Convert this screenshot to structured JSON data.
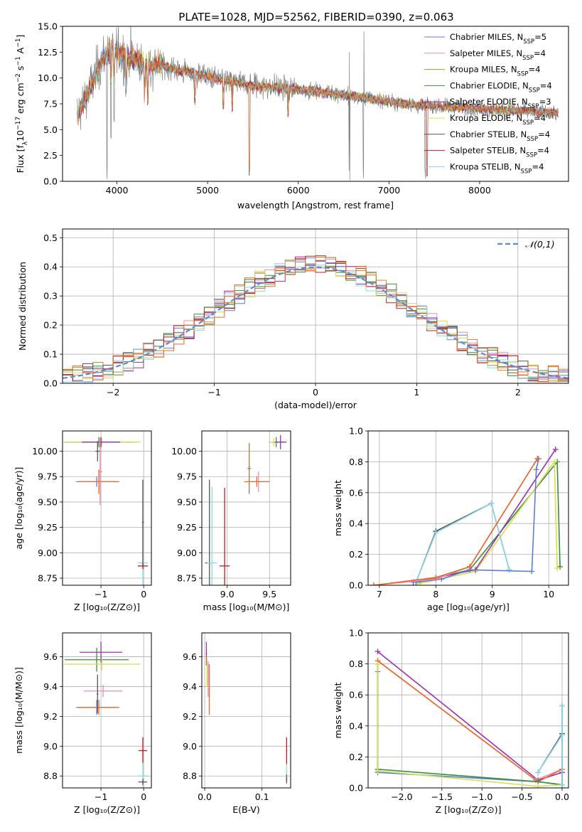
{
  "figure_title": "PLATE=1028, MJD=52562, FIBERID=0390, z=0.063",
  "colors": {
    "Chabrier MILES": "#5b7fd6",
    "Salpeter MILES": "#e88fa8",
    "Kroupa MILES": "#c08a2a",
    "Chabrier ELODIE": "#3c8c3c",
    "Salpeter ELODIE": "#9a2fb0",
    "Kroupa ELODIE": "#d4e04a",
    "Chabrier STELIB": "#555555",
    "Salpeter STELIB": "#b22222",
    "Kroupa STELIB": "#8fd8e8",
    "data": "#808080",
    "orange": "#e86a2a",
    "gaussian": "#5b8bd6"
  },
  "chart_data": [
    {
      "id": "spectrum",
      "type": "line",
      "title": "PLATE=1028, MJD=52562, FIBERID=0390, z=0.063",
      "xlabel": "wavelength [Angstrom, rest frame]",
      "ylabel_parts": [
        "Flux [f",
        "λ",
        "10",
        "−17",
        " erg cm",
        "−2",
        " s",
        "−1",
        " A",
        "−1",
        "]"
      ],
      "xlim": [
        3400,
        8980
      ],
      "ylim": [
        0,
        15
      ],
      "xticks": [
        4000,
        5000,
        6000,
        7000,
        8000
      ],
      "yticks": [
        "0.0",
        "2.5",
        "5.0",
        "7.5",
        "10.0",
        "12.5",
        "15.0"
      ],
      "legend": [
        {
          "label": "Chabrier MILES, N",
          "sub": "SSP",
          "tail": "=5",
          "color": "Chabrier MILES"
        },
        {
          "label": "Salpeter MILES, N",
          "sub": "SSP",
          "tail": "=4",
          "color": "Salpeter MILES"
        },
        {
          "label": "Kroupa MILES, N",
          "sub": "SSP",
          "tail": "=4",
          "color": "Kroupa MILES"
        },
        {
          "label": "Chabrier ELODIE, N",
          "sub": "SSP",
          "tail": "=4",
          "color": "Chabrier ELODIE"
        },
        {
          "label": "Salpeter ELODIE, N",
          "sub": "SSP",
          "tail": "=3",
          "color": "Salpeter ELODIE"
        },
        {
          "label": "Kroupa ELODIE, N",
          "sub": "SSP",
          "tail": "=4",
          "color": "Kroupa ELODIE"
        },
        {
          "label": "Chabrier STELIB, N",
          "sub": "SSP",
          "tail": "=4",
          "color": "Chabrier STELIB"
        },
        {
          "label": "Salpeter STELIB, N",
          "sub": "SSP",
          "tail": "=4",
          "color": "Salpeter STELIB"
        },
        {
          "label": "Kroupa STELIB, N",
          "sub": "SSP",
          "tail": "=4",
          "color": "Kroupa STELIB"
        }
      ],
      "continuum": [
        [
          3560,
          6.5
        ],
        [
          3650,
          8.0
        ],
        [
          3750,
          10.0
        ],
        [
          3850,
          12.0
        ],
        [
          3950,
          12.8
        ],
        [
          4050,
          12.3
        ],
        [
          4150,
          12.0
        ],
        [
          4300,
          11.4
        ],
        [
          4500,
          11.2
        ],
        [
          4700,
          10.7
        ],
        [
          4900,
          10.4
        ],
        [
          5100,
          9.9
        ],
        [
          5300,
          9.6
        ],
        [
          5500,
          9.3
        ],
        [
          5700,
          9.1
        ],
        [
          5900,
          9.0
        ],
        [
          6100,
          8.8
        ],
        [
          6300,
          8.6
        ],
        [
          6500,
          8.4
        ],
        [
          6700,
          8.1
        ],
        [
          6900,
          7.9
        ],
        [
          7100,
          7.6
        ],
        [
          7300,
          7.4
        ],
        [
          7500,
          7.3
        ],
        [
          7700,
          7.2
        ],
        [
          7900,
          7.1
        ],
        [
          8100,
          7.0
        ],
        [
          8300,
          6.9
        ],
        [
          8500,
          6.8
        ],
        [
          8700,
          6.7
        ],
        [
          8870,
          6.6
        ]
      ],
      "absorption_lines": [
        [
          3890,
          0.0
        ],
        [
          3934,
          3.8
        ],
        [
          3969,
          5.0
        ],
        [
          4101,
          7.5
        ],
        [
          4304,
          8.2
        ],
        [
          4340,
          6.5
        ],
        [
          4861,
          8.0
        ],
        [
          5175,
          7.8
        ],
        [
          5270,
          7.9
        ],
        [
          5460,
          0.0
        ],
        [
          5890,
          6.6
        ],
        [
          6563,
          0.0
        ],
        [
          6720,
          0.0
        ],
        [
          7400,
          0.0
        ]
      ],
      "emission_lines": [
        [
          6563,
          12.5
        ],
        [
          6725,
          14.5
        ],
        [
          6760,
          8.0
        ]
      ]
    },
    {
      "id": "residuals",
      "type": "histogram",
      "xlabel": "(data-model)/error",
      "ylabel": "Normed distribution",
      "xlim": [
        -2.5,
        2.5
      ],
      "ylim": [
        0,
        0.53
      ],
      "xticks": [
        -2,
        -1,
        0,
        1,
        2
      ],
      "yticks": [
        "0.0",
        "0.1",
        "0.2",
        "0.3",
        "0.4",
        "0.5"
      ],
      "legend_label": "𝒩(0,1)",
      "bin_width": 0.1
    },
    {
      "id": "age_vs_Z",
      "type": "scatter",
      "xlabel": "Z [log₁₀(Z/Z⊙)]",
      "ylabel": "age  [log₁₀(age/yr)]",
      "xlim": [
        -1.9,
        0.18
      ],
      "ylim": [
        8.68,
        10.2
      ],
      "xticks": [
        {
          "v": -1,
          "t": "−1"
        },
        {
          "v": 0,
          "t": "0"
        }
      ],
      "yticks": [
        "8.75",
        "9.00",
        "9.25",
        "9.50",
        "9.75",
        "10.00"
      ],
      "points": [
        {
          "x": -1.05,
          "y": 10.09,
          "xerr": 0.8,
          "yerr": 0.05,
          "color": "Chabrier ELODIE"
        },
        {
          "x": -0.98,
          "y": 10.09,
          "xerr": 0.9,
          "yerr": 0.04,
          "color": "Kroupa ELODIE"
        },
        {
          "x": -1.0,
          "y": 10.09,
          "xerr": 0.45,
          "yerr": 0.05,
          "color": "Salpeter ELODIE"
        },
        {
          "x": -1.1,
          "y": 9.7,
          "xerr": 0.48,
          "yerr": 0.05,
          "color": "Chabrier MILES"
        },
        {
          "x": -1.05,
          "y": 9.7,
          "xerr": 0.48,
          "yerr": 0.12,
          "color": "orange"
        },
        {
          "x": -1.02,
          "y": 9.8,
          "xerr": 0.05,
          "yerr": 0.33,
          "color": "Salpeter MILES"
        },
        {
          "x": -1.08,
          "y": 10.0,
          "xerr": 0.05,
          "yerr": 0.1,
          "color": "Chabrier STELIB"
        },
        {
          "x": -0.02,
          "y": 8.9,
          "xerr": 0.12,
          "yerr": 0.82,
          "color": "Kroupa STELIB"
        },
        {
          "x": -0.02,
          "y": 8.87,
          "xerr": 0.12,
          "yerr": 0.03,
          "color": "Salpeter STELIB"
        },
        {
          "x": -0.02,
          "y": 9.3,
          "xerr": 0.02,
          "yerr": 0.42,
          "color": "Chabrier STELIB"
        }
      ]
    },
    {
      "id": "age_vs_mass",
      "type": "scatter",
      "xlabel": "mass [log₁₀(M/M⊙)]",
      "ylabel": "",
      "xlim": [
        8.7,
        9.75
      ],
      "ylim": [
        8.68,
        10.2
      ],
      "xticks": [
        {
          "v": 9.0,
          "t": "9.0"
        },
        {
          "v": 9.5,
          "t": "9.5"
        }
      ],
      "yticks": [
        "8.75",
        "9.00",
        "9.25",
        "9.50",
        "9.75",
        "10.00"
      ],
      "points": [
        {
          "x": 8.79,
          "y": 8.9,
          "xerr": 0.05,
          "yerr": 0.82,
          "color": "Chabrier STELIB"
        },
        {
          "x": 8.82,
          "y": 8.9,
          "xerr": 0.06,
          "yerr": 0.75,
          "color": "Kroupa STELIB"
        },
        {
          "x": 8.97,
          "y": 8.87,
          "xerr": 0.06,
          "yerr": 0.77,
          "color": "Salpeter STELIB"
        },
        {
          "x": 9.26,
          "y": 9.83,
          "xerr": 0.02,
          "yerr": 0.25,
          "color": "Chabrier MILES"
        },
        {
          "x": 9.37,
          "y": 9.7,
          "xerr": 0.12,
          "yerr": 0.1,
          "color": "Salpeter MILES"
        },
        {
          "x": 9.35,
          "y": 9.7,
          "xerr": 0.15,
          "yerr": 0.05,
          "color": "orange"
        },
        {
          "x": 9.26,
          "y": 9.85,
          "xerr": 0.01,
          "yerr": 0.23,
          "color": "Kroupa MILES"
        },
        {
          "x": 9.58,
          "y": 10.09,
          "xerr": 0.06,
          "yerr": 0.05,
          "color": "Chabrier ELODIE"
        },
        {
          "x": 9.55,
          "y": 10.09,
          "xerr": 0.06,
          "yerr": 0.04,
          "color": "Kroupa ELODIE"
        },
        {
          "x": 9.63,
          "y": 10.09,
          "xerr": 0.07,
          "yerr": 0.07,
          "color": "Salpeter ELODIE"
        }
      ]
    },
    {
      "id": "weight_vs_age",
      "type": "line",
      "xlabel": "age  [log₁₀(age/yr)]",
      "ylabel": "mass weight",
      "xlim": [
        6.8,
        10.35
      ],
      "ylim": [
        0,
        1.0
      ],
      "xticks": [
        {
          "v": 7,
          "t": "7"
        },
        {
          "v": 8,
          "t": "8"
        },
        {
          "v": 9,
          "t": "9"
        },
        {
          "v": 10,
          "t": "10"
        }
      ],
      "yticks": [
        "0.0",
        "0.2",
        "0.4",
        "0.6",
        "0.8",
        "1.0"
      ],
      "series": [
        {
          "color": "Chabrier ELODIE",
          "x": [
            7.7,
            8.6,
            10.15,
            10.2
          ],
          "y": [
            0.02,
            0.1,
            0.8,
            0.12
          ]
        },
        {
          "color": "Kroupa ELODIE",
          "x": [
            7.7,
            8.7,
            10.1,
            10.15
          ],
          "y": [
            0.01,
            0.09,
            0.8,
            0.11
          ]
        },
        {
          "color": "Salpeter ELODIE",
          "x": [
            7.6,
            8.7,
            10.12
          ],
          "y": [
            0.02,
            0.1,
            0.88
          ]
        },
        {
          "color": "Chabrier STELIB",
          "x": [
            7.65,
            8.0,
            8.98,
            9.3
          ],
          "y": [
            0.02,
            0.35,
            0.53,
            0.1
          ]
        },
        {
          "color": "Kroupa STELIB",
          "x": [
            7.65,
            8.0,
            8.98,
            9.3
          ],
          "y": [
            0.02,
            0.34,
            0.53,
            0.1
          ]
        },
        {
          "color": "Chabrier MILES",
          "x": [
            7.65,
            8.1,
            8.6,
            9.7,
            9.78,
            9.82
          ],
          "y": [
            0.02,
            0.04,
            0.1,
            0.09,
            0.75,
            0.82
          ]
        },
        {
          "color": "Salpeter MILES",
          "x": [
            6.9,
            8.0,
            8.6,
            9.8
          ],
          "y": [
            0.0,
            0.04,
            0.12,
            0.82
          ]
        },
        {
          "color": "orange",
          "x": [
            6.9,
            8.0,
            8.6,
            9.8
          ],
          "y": [
            0.0,
            0.05,
            0.12,
            0.82
          ]
        }
      ]
    },
    {
      "id": "mass_vs_Z",
      "type": "scatter",
      "xlabel": "Z [log₁₀(Z/Z⊙)]",
      "ylabel": "mass [log₁₀(M/M⊙)]",
      "xlim": [
        -1.9,
        0.18
      ],
      "ylim": [
        8.72,
        9.76
      ],
      "xticks": [
        {
          "v": -1,
          "t": "−1"
        },
        {
          "v": 0,
          "t": "0"
        }
      ],
      "yticks": [
        "8.8",
        "9.0",
        "9.2",
        "9.4",
        "9.6"
      ],
      "points": [
        {
          "x": -1.0,
          "y": 9.63,
          "xerr": 0.5,
          "yerr": 0.07,
          "color": "Salpeter ELODIE"
        },
        {
          "x": -1.1,
          "y": 9.58,
          "xerr": 0.75,
          "yerr": 0.08,
          "color": "Chabrier ELODIE"
        },
        {
          "x": -0.98,
          "y": 9.55,
          "xerr": 0.9,
          "yerr": 0.04,
          "color": "Kroupa ELODIE"
        },
        {
          "x": -0.95,
          "y": 9.37,
          "xerr": 0.45,
          "yerr": 0.04,
          "color": "Salpeter MILES"
        },
        {
          "x": -1.1,
          "y": 9.26,
          "xerr": 0.48,
          "yerr": 0.05,
          "color": "Chabrier MILES"
        },
        {
          "x": -1.05,
          "y": 9.26,
          "xerr": 0.48,
          "yerr": 0.05,
          "color": "orange"
        },
        {
          "x": -1.08,
          "y": 9.35,
          "xerr": 0.02,
          "yerr": 0.13,
          "color": "Chabrier STELIB"
        },
        {
          "x": -0.02,
          "y": 8.97,
          "xerr": 0.1,
          "yerr": 0.09,
          "color": "Salpeter STELIB"
        },
        {
          "x": -0.02,
          "y": 8.8,
          "xerr": 0.12,
          "yerr": 0.09,
          "color": "Kroupa STELIB"
        },
        {
          "x": -0.02,
          "y": 8.76,
          "xerr": 0.1,
          "yerr": 0.02,
          "color": "Chabrier STELIB"
        }
      ]
    },
    {
      "id": "mass_vs_EBV",
      "type": "scatter",
      "xlabel": "E(B-V)",
      "ylabel": "",
      "xlim": [
        -0.005,
        0.15
      ],
      "ylim": [
        8.72,
        9.76
      ],
      "xticks": [
        {
          "v": 0.0,
          "t": "0.0"
        },
        {
          "v": 0.1,
          "t": "0.1"
        }
      ],
      "yticks": [
        "8.8",
        "9.0",
        "9.2",
        "9.4",
        "9.6"
      ],
      "points": [
        {
          "x": 0.003,
          "y": 9.62,
          "xerr": 0.001,
          "yerr": 0.08,
          "color": "Salpeter ELODIE"
        },
        {
          "x": 0.004,
          "y": 9.5,
          "xerr": 0.001,
          "yerr": 0.1,
          "color": "Kroupa ELODIE"
        },
        {
          "x": 0.006,
          "y": 9.45,
          "xerr": 0.001,
          "yerr": 0.12,
          "color": "Salpeter MILES"
        },
        {
          "x": 0.008,
          "y": 9.38,
          "xerr": 0.001,
          "yerr": 0.17,
          "color": "orange"
        },
        {
          "x": 0.143,
          "y": 8.97,
          "xerr": 0.001,
          "yerr": 0.09,
          "color": "Salpeter STELIB"
        },
        {
          "x": 0.143,
          "y": 8.82,
          "xerr": 0.001,
          "yerr": 0.06,
          "color": "Kroupa STELIB"
        },
        {
          "x": 0.143,
          "y": 8.78,
          "xerr": 0.001,
          "yerr": 0.03,
          "color": "Chabrier STELIB"
        }
      ]
    },
    {
      "id": "weight_vs_Z",
      "type": "line",
      "xlabel": "Z [log₁₀(Z/Z⊙)]",
      "ylabel": "mass weight",
      "xlim": [
        -2.42,
        0.08
      ],
      "ylim": [
        0,
        1.0
      ],
      "xticks": [
        {
          "v": -2.0,
          "t": "−2.0"
        },
        {
          "v": -1.5,
          "t": "−1.5"
        },
        {
          "v": -1.0,
          "t": "−1.0"
        },
        {
          "v": -0.5,
          "t": "−0.5"
        },
        {
          "v": 0.0,
          "t": "0.0"
        }
      ],
      "yticks": [
        "0.0",
        "0.2",
        "0.4",
        "0.6",
        "0.8",
        "1.0"
      ],
      "series": [
        {
          "color": "Salpeter ELODIE",
          "x": [
            -2.3,
            -0.3,
            0.0,
            0.0
          ],
          "y": [
            0.88,
            0.05,
            0.1,
            0.02
          ]
        },
        {
          "color": "Salpeter MILES",
          "x": [
            -2.3,
            -0.33,
            0.0
          ],
          "y": [
            0.82,
            0.05,
            0.12
          ]
        },
        {
          "color": "orange",
          "x": [
            -2.3,
            -0.3,
            0.0
          ],
          "y": [
            0.82,
            0.04,
            0.12
          ]
        },
        {
          "color": "Chabrier MILES",
          "x": [
            -2.3,
            -2.3,
            -0.3,
            0.0
          ],
          "y": [
            0.75,
            0.1,
            0.04,
            0.02
          ]
        },
        {
          "color": "Chabrier ELODIE",
          "x": [
            -2.3,
            -2.3,
            -0.3,
            0.0
          ],
          "y": [
            0.8,
            0.12,
            0.04,
            0.02
          ]
        },
        {
          "color": "Kroupa ELODIE",
          "x": [
            -2.3,
            -2.3,
            -0.3,
            0.0
          ],
          "y": [
            0.8,
            0.11,
            0.01,
            0.02
          ]
        },
        {
          "color": "Chabrier STELIB",
          "x": [
            -0.3,
            0.0,
            0.0,
            0.0
          ],
          "y": [
            0.1,
            0.35,
            0.53,
            0.02
          ]
        },
        {
          "color": "Kroupa STELIB",
          "x": [
            -0.3,
            0.0,
            0.0,
            0.0
          ],
          "y": [
            0.1,
            0.34,
            0.53,
            0.02
          ]
        }
      ]
    }
  ]
}
